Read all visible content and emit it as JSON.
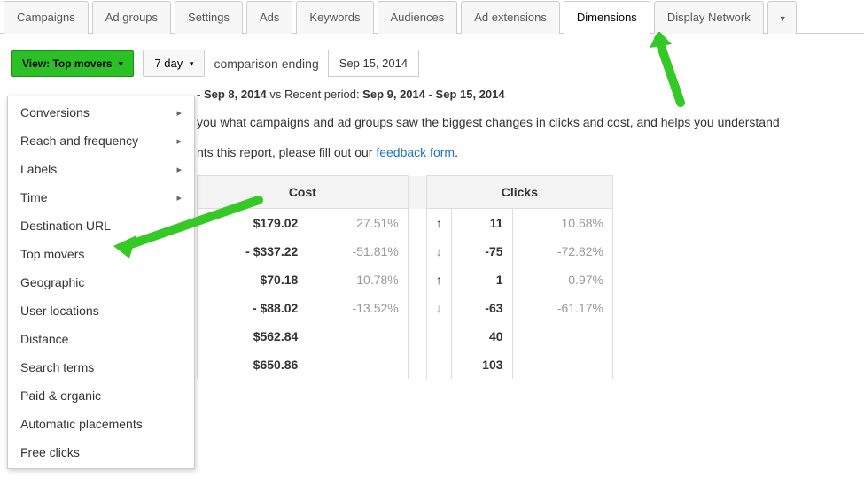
{
  "tabs": {
    "items": [
      "Campaigns",
      "Ad groups",
      "Settings",
      "Ads",
      "Keywords",
      "Audiences",
      "Ad extensions",
      "Dimensions",
      "Display Network"
    ],
    "active_index": 7,
    "more_caret": "▼"
  },
  "controls": {
    "view_button": "View: Top movers",
    "range_button": "7 day",
    "comparison_label": "comparison ending",
    "date_value": "Sep 15, 2014"
  },
  "dropdown": {
    "items": [
      {
        "label": "Conversions",
        "submenu": true
      },
      {
        "label": "Reach and frequency",
        "submenu": true
      },
      {
        "label": "Labels",
        "submenu": true
      },
      {
        "label": "Time",
        "submenu": true
      },
      {
        "label": "Destination URL",
        "submenu": false
      },
      {
        "label": "Top movers",
        "submenu": false
      },
      {
        "label": "Geographic",
        "submenu": false
      },
      {
        "label": "User locations",
        "submenu": false
      },
      {
        "label": "Distance",
        "submenu": false
      },
      {
        "label": "Search terms",
        "submenu": false
      },
      {
        "label": "Paid & organic",
        "submenu": false
      },
      {
        "label": "Automatic placements",
        "submenu": false
      },
      {
        "label": "Free clicks",
        "submenu": false
      }
    ]
  },
  "period": {
    "prefix": "- ",
    "left_range": "Sep 8, 2014",
    "vs": " vs Recent period: ",
    "right_range": "Sep 9, 2014 - Sep 15, 2014"
  },
  "description": "you what campaigns and ad groups saw the biggest changes in clicks and cost, and helps you understand",
  "feedback": {
    "pre": "this report, please fill out our ",
    "mid_clipped_left": "nts ",
    "link": "feedback form",
    "post": "."
  },
  "table": {
    "col_cost": "Cost",
    "col_clicks": "Clicks",
    "rows": [
      {
        "cost": "$179.02",
        "cost_pct": "27.51%",
        "dir": "up",
        "clicks": "11",
        "clicks_pct": "10.68%"
      },
      {
        "cost": "- $337.22",
        "cost_pct": "-51.81%",
        "dir": "down",
        "clicks": "-75",
        "clicks_pct": "-72.82%"
      },
      {
        "cost": "$70.18",
        "cost_pct": "10.78%",
        "dir": "up",
        "clicks": "1",
        "clicks_pct": "0.97%"
      },
      {
        "cost": "- $88.02",
        "cost_pct": "-13.52%",
        "dir": "down",
        "clicks": "-63",
        "clicks_pct": "-61.17%"
      },
      {
        "cost": "$562.84",
        "cost_pct": "",
        "dir": "",
        "clicks": "40",
        "clicks_pct": ""
      },
      {
        "cost": "$650.86",
        "cost_pct": "",
        "dir": "",
        "clicks": "103",
        "clicks_pct": ""
      }
    ]
  },
  "style": {
    "accent_green": "#2bc126",
    "arrow_green": "#34c924",
    "border_gray": "#cccccc",
    "muted_text": "#999999",
    "link_blue": "#1a73cc"
  }
}
